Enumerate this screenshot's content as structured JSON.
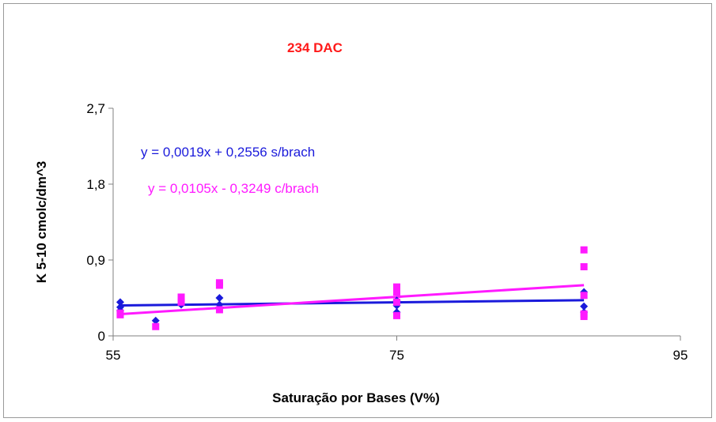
{
  "chart_data": {
    "type": "scatter",
    "title": "234 DAC",
    "xlabel": "Saturação por Bases (V%)",
    "ylabel": "K 5-10 cmolc/dm^3",
    "xlim": [
      55,
      95
    ],
    "ylim": [
      0,
      2.7
    ],
    "x_ticks": [
      "55",
      "75",
      "95"
    ],
    "y_ticks": [
      "0",
      "0,9",
      "1,8",
      "2,7"
    ],
    "grid": false,
    "series": [
      {
        "name": "s/brach",
        "color": "#1a1adb",
        "marker": "diamond",
        "points": [
          [
            55.5,
            0.4
          ],
          [
            55.5,
            0.34
          ],
          [
            55.5,
            0.3
          ],
          [
            58.0,
            0.18
          ],
          [
            59.8,
            0.37
          ],
          [
            62.5,
            0.45
          ],
          [
            62.5,
            0.37
          ],
          [
            62.5,
            0.33
          ],
          [
            75.0,
            0.42
          ],
          [
            75.0,
            0.36
          ],
          [
            75.0,
            0.28
          ],
          [
            88.2,
            0.52
          ],
          [
            88.2,
            0.35
          ],
          [
            88.2,
            0.28
          ]
        ],
        "trendline": {
          "slope": 0.0019,
          "intercept": 0.2556,
          "x_range": [
            55.5,
            88.2
          ]
        },
        "equation_label": "y = 0,0019x + 0,2556 s/brach"
      },
      {
        "name": "c/brach",
        "color": "#ff1aff",
        "marker": "square",
        "points": [
          [
            55.5,
            0.27
          ],
          [
            55.5,
            0.25
          ],
          [
            58.0,
            0.11
          ],
          [
            59.8,
            0.46
          ],
          [
            59.8,
            0.4
          ],
          [
            62.5,
            0.63
          ],
          [
            62.5,
            0.6
          ],
          [
            62.5,
            0.31
          ],
          [
            75.0,
            0.58
          ],
          [
            75.0,
            0.52
          ],
          [
            75.0,
            0.4
          ],
          [
            75.0,
            0.24
          ],
          [
            88.2,
            1.02
          ],
          [
            88.2,
            0.82
          ],
          [
            88.2,
            0.48
          ],
          [
            88.2,
            0.26
          ],
          [
            88.2,
            0.23
          ]
        ],
        "trendline": {
          "slope": 0.0105,
          "intercept": -0.3249,
          "x_range": [
            55.5,
            88.2
          ]
        },
        "equation_label": "y = 0,0105x - 0,3249 c/brach"
      }
    ]
  }
}
